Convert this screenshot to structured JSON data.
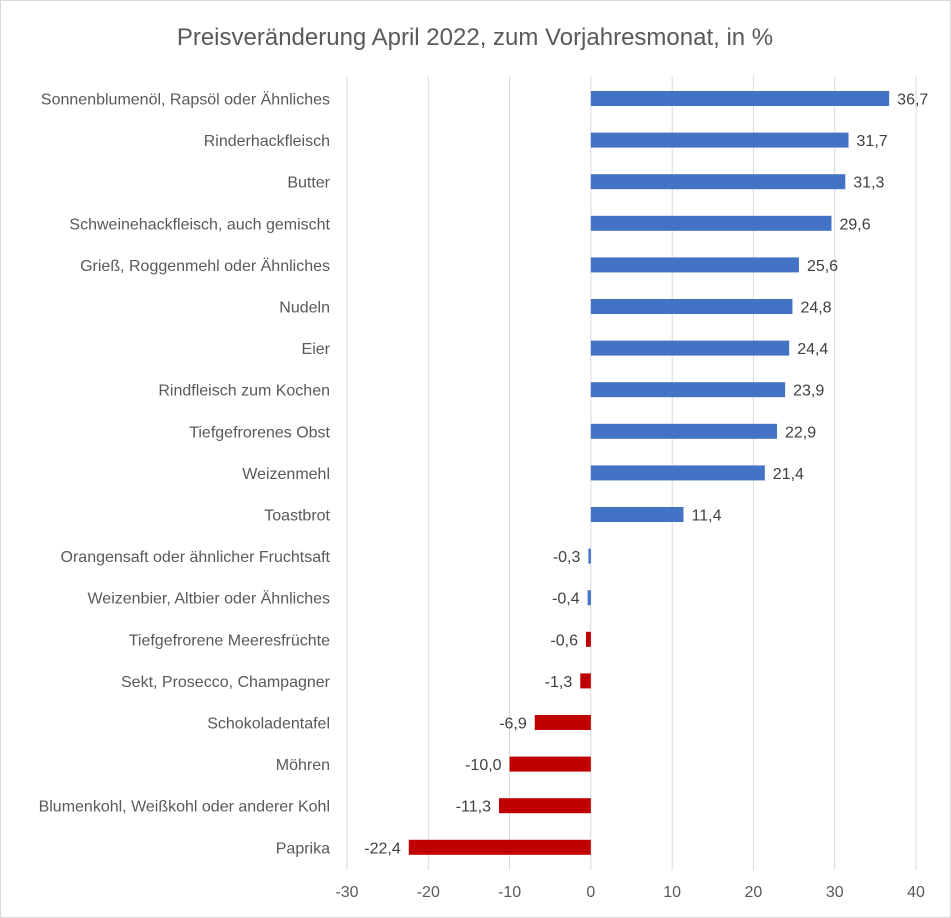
{
  "chart_data": {
    "type": "bar",
    "orientation": "horizontal",
    "title": "Preisveränderung April 2022, zum Vorjahresmonat, in %",
    "xlabel": "",
    "ylabel": "",
    "xlim": [
      -30,
      40
    ],
    "ticks": [
      -30,
      -20,
      -10,
      0,
      10,
      20,
      30,
      40
    ],
    "tick_labels": [
      "-30",
      "-20",
      "-10",
      "0",
      "10",
      "20",
      "30",
      "40"
    ],
    "grid": true,
    "legend": "none",
    "positive_color": "#4472c4",
    "negative_color": "#c00000",
    "categories": [
      "Sonnenblumenöl, Rapsöl oder Ähnliches",
      "Rinderhackfleisch",
      "Butter",
      "Schweinehackfleisch, auch gemischt",
      "Grieß, Roggenmehl oder Ähnliches",
      "Nudeln",
      "Eier",
      "Rindfleisch zum Kochen",
      "Tiefgefrorenes Obst",
      "Weizenmehl",
      "Toastbrot",
      "Orangensaft oder ähnlicher Fruchtsaft",
      "Weizenbier, Altbier oder Ähnliches",
      "Tiefgefrorene Meeresfrüchte",
      "Sekt, Prosecco, Champagner",
      "Schokoladentafel",
      "Möhren",
      "Blumenkohl, Weißkohl oder anderer Kohl",
      "Paprika"
    ],
    "values": [
      36.7,
      31.7,
      31.3,
      29.6,
      25.6,
      24.8,
      24.4,
      23.9,
      22.9,
      21.4,
      11.4,
      -0.3,
      -0.4,
      -0.6,
      -1.3,
      -6.9,
      -10.0,
      -11.3,
      -22.4
    ],
    "value_labels": [
      "36,7",
      "31,7",
      "31,3",
      "29,6",
      "25,6",
      "24,8",
      "24,4",
      "23,9",
      "22,9",
      "21,4",
      "11,4",
      "-0,3",
      "-0,4",
      "-0,6",
      "-1,3",
      "-6,9",
      "-10,0",
      "-11,3",
      "-22,4"
    ],
    "bar_colors": [
      "#4472c4",
      "#4472c4",
      "#4472c4",
      "#4472c4",
      "#4472c4",
      "#4472c4",
      "#4472c4",
      "#4472c4",
      "#4472c4",
      "#4472c4",
      "#4472c4",
      "#4472c4",
      "#4472c4",
      "#c00000",
      "#c00000",
      "#c00000",
      "#c00000",
      "#c00000",
      "#c00000"
    ]
  }
}
